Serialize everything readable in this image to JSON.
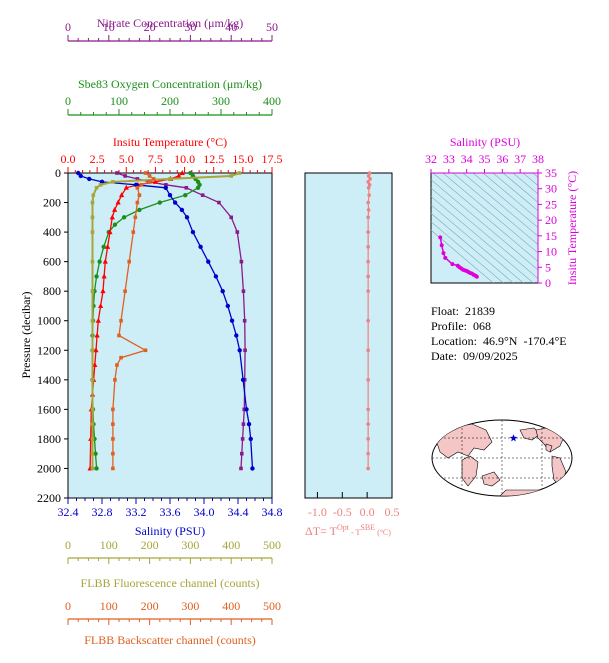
{
  "colors": {
    "nitrate": "#8b1a8b",
    "oxygen": "#1a8f1a",
    "temperature": "#ff0000",
    "salinity": "#0000cc",
    "fluorescence": "#a6a63a",
    "backscatter": "#e06020",
    "delta_t": "#f08080",
    "salinity_ts": "#dd00dd",
    "plot_bg": "#cdeef7"
  },
  "info": {
    "float_label": "Float:",
    "float": "21839",
    "profile_label": "Profile:",
    "profile": "068",
    "location_label": "Location:",
    "location": "46.9°N  -170.4°E",
    "date_label": "Date:",
    "date": "09/09/2025"
  },
  "chart_data": [
    {
      "type": "line",
      "panel": "profiles",
      "ylabel": "Pressure (decibar)",
      "ylim": [
        2200,
        0
      ],
      "yticks": [
        "0",
        "200",
        "400",
        "600",
        "800",
        "1000",
        "1200",
        "1400",
        "1600",
        "1800",
        "2000",
        "2200"
      ],
      "axes": {
        "nitrate": {
          "label": "Nitrate Concentration (μm/kg)",
          "lim": [
            0,
            50
          ],
          "ticks": [
            "0",
            "10",
            "20",
            "30",
            "40",
            "50"
          ]
        },
        "oxygen": {
          "label": "Sbe83 Oxygen Concentration (μm/kg)",
          "lim": [
            0,
            400
          ],
          "ticks": [
            "0",
            "100",
            "200",
            "300",
            "400"
          ]
        },
        "temperature": {
          "label": "Insitu Temperature (°C)",
          "lim": [
            0,
            17.5
          ],
          "ticks": [
            "0.0",
            "2.5",
            "5.0",
            "7.5",
            "10.0",
            "12.5",
            "15.0",
            "17.5"
          ]
        },
        "salinity": {
          "label": "Salinity (PSU)",
          "lim": [
            32.4,
            34.8
          ],
          "ticks": [
            "32.4",
            "32.8",
            "33.2",
            "33.6",
            "34.0",
            "34.4",
            "34.8"
          ]
        },
        "fluorescence": {
          "label": "FLBB Fluorescence channel (counts)",
          "lim": [
            0,
            500
          ],
          "ticks": [
            "0",
            "100",
            "200",
            "300",
            "400",
            "500"
          ]
        },
        "backscatter": {
          "label": "FLBB Backscatter channel (counts)",
          "lim": [
            0,
            500
          ],
          "ticks": [
            "0",
            "100",
            "200",
            "300",
            "400",
            "500"
          ]
        }
      },
      "series": [
        {
          "key": "nitrate",
          "x": [
            12,
            14,
            17,
            20,
            24,
            29,
            33,
            37,
            40,
            41.5,
            42.5,
            43,
            43.3,
            43.4,
            43.3,
            43.2,
            43,
            42.8,
            42.6,
            42.4
          ],
          "y": [
            0,
            20,
            40,
            60,
            80,
            100,
            150,
            200,
            300,
            400,
            600,
            800,
            1000,
            1200,
            1400,
            1600,
            1700,
            1800,
            1900,
            2000
          ]
        },
        {
          "key": "oxygen",
          "x": [
            240,
            245,
            250,
            255,
            258,
            255,
            230,
            180,
            140,
            110,
            92,
            80,
            70,
            62,
            56,
            52,
            50,
            49,
            48,
            48,
            48,
            49,
            50,
            52,
            54,
            56
          ],
          "y": [
            0,
            20,
            40,
            60,
            80,
            100,
            150,
            200,
            250,
            300,
            350,
            400,
            500,
            600,
            700,
            800,
            900,
            1000,
            1100,
            1200,
            1400,
            1600,
            1700,
            1800,
            1900,
            2000
          ]
        },
        {
          "key": "temperature",
          "x": [
            9.8,
            9.5,
            8.8,
            7.5,
            6.0,
            5.0,
            4.6,
            4.3,
            4.0,
            3.8,
            3.6,
            3.4,
            3.2,
            3.1,
            3.0,
            2.8,
            2.6,
            2.5,
            2.4,
            2.3,
            2.2,
            2.1,
            2.0,
            1.95,
            1.9
          ],
          "y": [
            0,
            20,
            40,
            60,
            80,
            100,
            150,
            200,
            250,
            300,
            400,
            500,
            600,
            700,
            800,
            900,
            1000,
            1100,
            1200,
            1300,
            1400,
            1500,
            1600,
            1800,
            2000
          ]
        },
        {
          "key": "salinity",
          "x": [
            32.52,
            32.55,
            32.65,
            32.8,
            33.2,
            33.55,
            33.6,
            33.66,
            33.74,
            33.8,
            33.87,
            33.96,
            34.05,
            34.14,
            34.22,
            34.28,
            34.33,
            34.38,
            34.42,
            34.46,
            34.5,
            34.53,
            34.55,
            34.57
          ],
          "y": [
            0,
            20,
            40,
            60,
            80,
            100,
            150,
            200,
            250,
            300,
            400,
            500,
            600,
            700,
            800,
            900,
            1000,
            1100,
            1200,
            1400,
            1600,
            1700,
            1800,
            2000
          ]
        },
        {
          "key": "fluorescence",
          "x": [
            420,
            400,
            250,
            110,
            80,
            70,
            62,
            60,
            60,
            60,
            60,
            60,
            60,
            60,
            60,
            60,
            60,
            60,
            60,
            60
          ],
          "y": [
            0,
            20,
            40,
            60,
            80,
            100,
            150,
            200,
            300,
            400,
            600,
            800,
            1000,
            1200,
            1400,
            1600,
            1700,
            1800,
            1900,
            2000
          ]
        },
        {
          "key": "backscatter",
          "x": [
            190,
            200,
            210,
            200,
            180,
            170,
            175,
            170,
            165,
            160,
            150,
            140,
            130,
            125,
            190,
            130,
            120,
            115,
            110,
            110,
            110,
            110,
            110
          ],
          "y": [
            0,
            20,
            40,
            60,
            80,
            100,
            150,
            200,
            300,
            400,
            600,
            800,
            1000,
            1100,
            1200,
            1250,
            1300,
            1400,
            1600,
            1700,
            1800,
            1900,
            2000
          ]
        }
      ]
    },
    {
      "type": "line",
      "panel": "delta_t",
      "xlabel": "ΔT= T^Opt - T^SBE (°C)",
      "xlim": [
        -1.25,
        0.5
      ],
      "xticks": [
        "-1.0",
        "-0.5",
        "0.0",
        "0.5"
      ],
      "ylim": [
        2200,
        0
      ],
      "series": [
        {
          "key": "delta_t",
          "x": [
            0.05,
            0.03,
            0.06,
            0.02,
            0.05,
            0.03,
            0.04,
            0.02,
            0.03,
            0.02,
            0.02,
            0.02,
            0.02,
            0.02,
            0.02,
            0.02,
            0.02,
            0.02,
            0.02,
            0.02,
            0.02,
            0.02,
            0.02
          ],
          "y": [
            0,
            20,
            40,
            60,
            80,
            100,
            150,
            200,
            250,
            300,
            400,
            500,
            600,
            700,
            800,
            1000,
            1200,
            1400,
            1600,
            1700,
            1800,
            1900,
            2000
          ]
        }
      ]
    },
    {
      "type": "scatter",
      "panel": "ts",
      "title": "Salinity (PSU)",
      "ylabel": "Insitu Temperature (°C)",
      "xlim": [
        32,
        38
      ],
      "xticks": [
        "32",
        "33",
        "34",
        "35",
        "36",
        "37",
        "38"
      ],
      "ylim": [
        0,
        35
      ],
      "yticks": [
        "0",
        "5",
        "10",
        "15",
        "20",
        "25",
        "30",
        "35"
      ],
      "series": [
        {
          "key": "salinity_ts",
          "x": [
            32.52,
            32.6,
            32.7,
            32.8,
            33.2,
            33.5,
            33.6,
            33.7,
            33.8,
            33.9,
            34.0,
            34.1,
            34.2,
            34.3,
            34.4,
            34.5,
            34.57
          ],
          "y": [
            14.5,
            12.0,
            9.5,
            8.0,
            6.0,
            5.5,
            5.0,
            4.6,
            4.2,
            4.0,
            3.8,
            3.5,
            3.2,
            3.0,
            2.6,
            2.3,
            2.0
          ]
        }
      ]
    },
    {
      "type": "map",
      "panel": "map",
      "location": {
        "lat": 46.9,
        "lon": -170.4
      }
    }
  ]
}
